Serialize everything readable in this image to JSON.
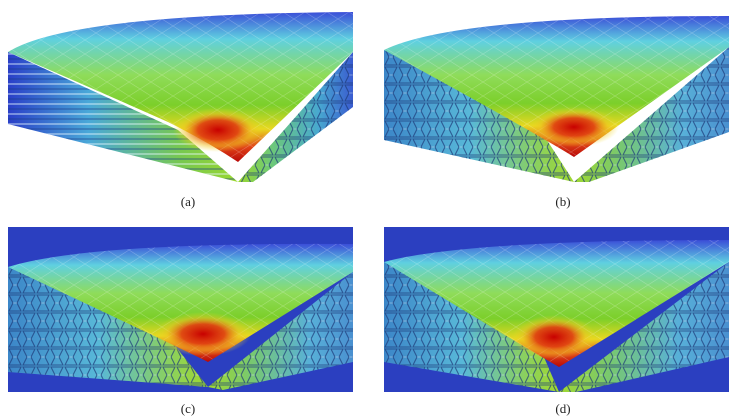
{
  "figure": {
    "panels": [
      {
        "id": "a",
        "caption": "(a)"
      },
      {
        "id": "b",
        "caption": "(b)"
      },
      {
        "id": "c",
        "caption": "(c)"
      },
      {
        "id": "d",
        "caption": "(d)"
      }
    ]
  },
  "colors": {
    "background": "#ffffff",
    "low": "#2233cc",
    "mid_low": "#55c8d8",
    "mid": "#7ed321",
    "mid_high": "#f0e020",
    "high": "#d41010"
  }
}
